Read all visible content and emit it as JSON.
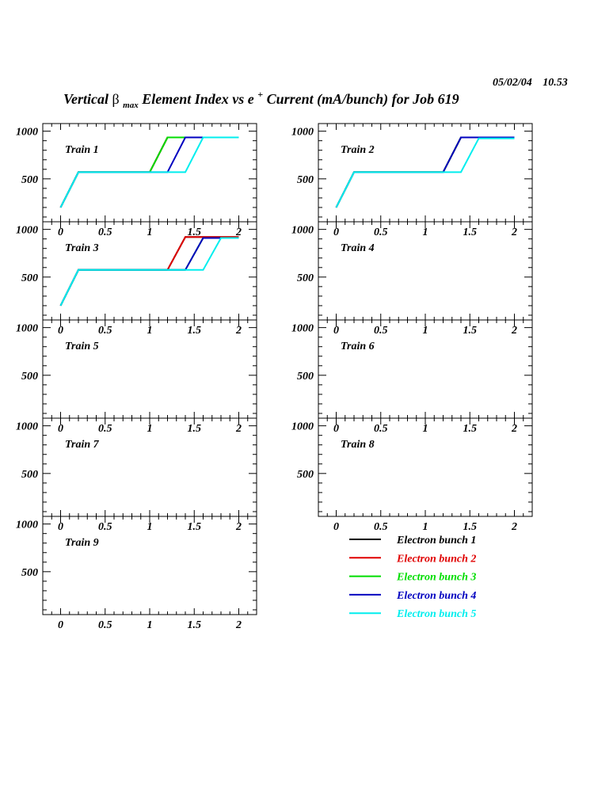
{
  "header": {
    "date": "05/02/04",
    "time": "10.53",
    "title_prefix": "Vertical ",
    "title_beta": "β",
    "title_sub": "max",
    "title_mid": " Element Index vs e",
    "title_sup": "+",
    "title_suffix": " Current (mA/bunch) for Job 619"
  },
  "chart_data": {
    "type": "line",
    "xlim": [
      -0.2,
      2.2
    ],
    "ylim": [
      50,
      1080
    ],
    "xticks": [
      0,
      0.5,
      1,
      1.5,
      2
    ],
    "xtick_labels": [
      "0",
      "0.5",
      "1",
      "1.5",
      "2"
    ],
    "yticks": [
      500,
      1000
    ],
    "ytick_labels": [
      "500",
      "1000"
    ],
    "grid": false,
    "legend": {
      "placement": "bottom-right",
      "entries": [
        {
          "name": "Electron bunch 1",
          "color": "#000000"
        },
        {
          "name": "Electron bunch 2",
          "color": "#e00000"
        },
        {
          "name": "Electron bunch 3",
          "color": "#00dd00"
        },
        {
          "name": "Electron bunch 4",
          "color": "#0000c0"
        },
        {
          "name": "Electron bunch 5",
          "color": "#00eeee"
        }
      ]
    },
    "panels": [
      {
        "label": "Train 1",
        "series": [
          {
            "name": "Electron bunch 1",
            "color": "#000000",
            "x": [
              0,
              0.2,
              1.0,
              1.2,
              2.0
            ],
            "y": [
              200,
              570,
              570,
              935,
              935
            ]
          },
          {
            "name": "Electron bunch 2",
            "color": "#e00000",
            "x": [
              0,
              0.2,
              1.0,
              1.2,
              2.0
            ],
            "y": [
              200,
              570,
              570,
              935,
              935
            ]
          },
          {
            "name": "Electron bunch 3",
            "color": "#00dd00",
            "x": [
              0,
              0.2,
              1.0,
              1.2,
              2.0
            ],
            "y": [
              200,
              570,
              570,
              935,
              935
            ]
          },
          {
            "name": "Electron bunch 4",
            "color": "#0000c0",
            "x": [
              0,
              0.2,
              1.2,
              1.4,
              2.0
            ],
            "y": [
              200,
              570,
              570,
              935,
              935
            ]
          },
          {
            "name": "Electron bunch 5",
            "color": "#00eeee",
            "x": [
              0,
              0.2,
              1.4,
              1.6,
              2.0
            ],
            "y": [
              200,
              570,
              570,
              935,
              935
            ]
          }
        ]
      },
      {
        "label": "Train 2",
        "series": [
          {
            "name": "Electron bunch 1",
            "color": "#000000",
            "x": [
              0,
              0.2,
              1.2,
              1.4,
              2.0
            ],
            "y": [
              200,
              570,
              570,
              935,
              935
            ]
          },
          {
            "name": "Electron bunch 2",
            "color": "#e00000",
            "x": [
              0,
              0.2,
              1.2,
              1.4,
              2.0
            ],
            "y": [
              200,
              570,
              570,
              935,
              935
            ]
          },
          {
            "name": "Electron bunch 3",
            "color": "#00dd00",
            "x": [
              0,
              0.2,
              1.2,
              1.4,
              2.0
            ],
            "y": [
              200,
              570,
              570,
              935,
              935
            ]
          },
          {
            "name": "Electron bunch 4",
            "color": "#0000c0",
            "x": [
              0,
              0.2,
              1.2,
              1.4,
              2.0
            ],
            "y": [
              200,
              570,
              570,
              935,
              935
            ]
          },
          {
            "name": "Electron bunch 5",
            "color": "#00eeee",
            "x": [
              0,
              0.2,
              1.4,
              1.6,
              2.0
            ],
            "y": [
              200,
              570,
              570,
              925,
              925
            ]
          }
        ]
      },
      {
        "label": "Train 3",
        "series": [
          {
            "name": "Electron bunch 1",
            "color": "#000000",
            "x": [
              0,
              0.2,
              1.2,
              1.4,
              2.0
            ],
            "y": [
              200,
              575,
              575,
              920,
              920
            ]
          },
          {
            "name": "Electron bunch 2",
            "color": "#e00000",
            "x": [
              0,
              0.2,
              1.2,
              1.4,
              2.0
            ],
            "y": [
              200,
              575,
              575,
              920,
              920
            ]
          },
          {
            "name": "Electron bunch 3",
            "color": "#00dd00",
            "x": [
              0,
              0.2,
              1.4,
              1.6,
              2.0
            ],
            "y": [
              200,
              575,
              575,
              910,
              910
            ]
          },
          {
            "name": "Electron bunch 4",
            "color": "#0000c0",
            "x": [
              0,
              0.2,
              1.4,
              1.6,
              2.0
            ],
            "y": [
              200,
              575,
              575,
              910,
              910
            ]
          },
          {
            "name": "Electron bunch 5",
            "color": "#00eeee",
            "x": [
              0,
              0.2,
              1.6,
              1.8,
              2.0
            ],
            "y": [
              200,
              575,
              575,
              910,
              910
            ]
          }
        ]
      },
      {
        "label": "Train 4",
        "series": []
      },
      {
        "label": "Train 5",
        "series": []
      },
      {
        "label": "Train 6",
        "series": []
      },
      {
        "label": "Train 7",
        "series": []
      },
      {
        "label": "Train 8",
        "series": []
      },
      {
        "label": "Train 9",
        "series": []
      }
    ]
  }
}
